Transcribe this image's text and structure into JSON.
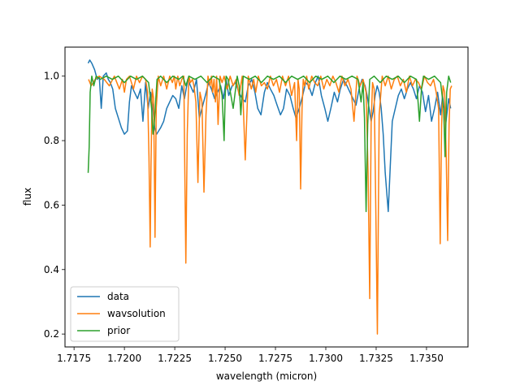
{
  "chart_data": {
    "type": "line",
    "title": "",
    "xlabel": "wavelength (micron)",
    "ylabel": "flux",
    "xlim": [
      1.71705,
      1.73706
    ],
    "ylim": [
      0.16,
      1.09
    ],
    "x_ticks": [
      1.7175,
      1.72,
      1.7225,
      1.725,
      1.7275,
      1.73,
      1.7325,
      1.735
    ],
    "x_tick_labels": [
      "1.7175",
      "1.7200",
      "1.7225",
      "1.7250",
      "1.7275",
      "1.7300",
      "1.7325",
      "1.7350"
    ],
    "y_ticks": [
      0.2,
      0.4,
      0.6,
      0.8,
      1.0
    ],
    "y_tick_labels": [
      "0.2",
      "0.4",
      "0.6",
      "0.8",
      "1.0"
    ],
    "grid": false,
    "legend": "lower-left",
    "series": [
      {
        "name": "data",
        "color": "#1f77b4",
        "x": [
          1.7182,
          1.71828,
          1.71838,
          1.71852,
          1.71865,
          1.71875,
          1.71885,
          1.71895,
          1.7191,
          1.7192,
          1.7193,
          1.71942,
          1.71955,
          1.7197,
          1.71985,
          1.72,
          1.72015,
          1.72025,
          1.72035,
          1.7205,
          1.72065,
          1.7208,
          1.72092,
          1.72105,
          1.72118,
          1.7213,
          1.7214,
          1.7215,
          1.7216,
          1.7217,
          1.7218,
          1.72195,
          1.7221,
          1.72225,
          1.7224,
          1.72255,
          1.7227,
          1.72285,
          1.72298,
          1.72315,
          1.72328,
          1.72342,
          1.72358,
          1.72372,
          1.72385,
          1.72402,
          1.72418,
          1.72432,
          1.72448,
          1.72462,
          1.72478,
          1.72492,
          1.72505,
          1.72518,
          1.72535,
          1.72552,
          1.72568,
          1.72585,
          1.726,
          1.72615,
          1.72632,
          1.72648,
          1.72662,
          1.72678,
          1.72695,
          1.7271,
          1.72725,
          1.72742,
          1.72758,
          1.72775,
          1.7279,
          1.72805,
          1.72822,
          1.72838,
          1.72852,
          1.72868,
          1.72885,
          1.729,
          1.72915,
          1.72932,
          1.72948,
          1.72962,
          1.72978,
          1.72995,
          1.7301,
          1.73025,
          1.73042,
          1.73058,
          1.73072,
          1.73088,
          1.73105,
          1.7312,
          1.73135,
          1.7315,
          1.73165,
          1.7318,
          1.73195,
          1.73205,
          1.73215,
          1.73225,
          1.73235,
          1.73245,
          1.73255,
          1.73265,
          1.73275,
          1.73285,
          1.73295,
          1.7331,
          1.7332,
          1.7333,
          1.73345,
          1.7336,
          1.73375,
          1.7339,
          1.73405,
          1.7342,
          1.73435,
          1.7345,
          1.73465,
          1.7348,
          1.73495,
          1.7351,
          1.73525,
          1.7354,
          1.73555,
          1.7357,
          1.7358,
          1.73595,
          1.7361,
          1.7362
        ],
        "y": [
          1.04,
          1.05,
          1.04,
          1.02,
          0.99,
          1.0,
          0.9,
          1.0,
          1.01,
          0.99,
          0.98,
          0.96,
          0.9,
          0.87,
          0.84,
          0.82,
          0.83,
          0.92,
          0.97,
          0.95,
          0.93,
          0.96,
          0.86,
          0.98,
          0.9,
          0.95,
          0.91,
          0.84,
          0.82,
          0.83,
          0.84,
          0.86,
          0.9,
          0.92,
          0.94,
          0.93,
          0.9,
          0.97,
          0.93,
          0.99,
          0.97,
          0.95,
          0.99,
          0.87,
          0.9,
          0.94,
          0.98,
          0.96,
          0.93,
          0.95,
          0.97,
          0.93,
          0.99,
          0.94,
          0.97,
          0.98,
          0.95,
          0.93,
          0.92,
          0.97,
          0.99,
          0.95,
          0.9,
          0.88,
          0.95,
          0.98,
          0.96,
          0.94,
          0.91,
          0.88,
          0.9,
          0.96,
          0.94,
          0.9,
          0.87,
          0.9,
          0.94,
          0.98,
          0.97,
          0.94,
          0.98,
          1.0,
          0.94,
          0.9,
          0.86,
          0.9,
          0.95,
          0.92,
          0.96,
          0.99,
          0.97,
          0.95,
          0.93,
          0.91,
          0.96,
          0.99,
          0.97,
          0.94,
          0.9,
          0.86,
          0.89,
          0.94,
          0.97,
          0.95,
          0.9,
          0.82,
          0.7,
          0.58,
          0.72,
          0.86,
          0.9,
          0.94,
          0.96,
          0.93,
          0.96,
          0.98,
          0.96,
          0.93,
          0.97,
          0.95,
          0.89,
          0.94,
          0.86,
          0.9,
          0.95,
          0.88,
          0.94,
          0.85,
          0.93,
          0.9
        ]
      },
      {
        "name": "wavsolution",
        "color": "#ff7f0e",
        "x": [
          1.71822,
          1.71835,
          1.71855,
          1.71875,
          1.719,
          1.71925,
          1.7195,
          1.71975,
          1.7199,
          1.72,
          1.7201,
          1.72025,
          1.72045,
          1.7206,
          1.72075,
          1.7209,
          1.72105,
          1.72115,
          1.72122,
          1.72128,
          1.72132,
          1.72138,
          1.72145,
          1.72152,
          1.72158,
          1.72168,
          1.7218,
          1.72195,
          1.7221,
          1.72225,
          1.72238,
          1.72248,
          1.72255,
          1.72265,
          1.72275,
          1.72285,
          1.72295,
          1.723,
          1.72305,
          1.72312,
          1.7232,
          1.72328,
          1.72338,
          1.72345,
          1.72355,
          1.72365,
          1.72375,
          1.72385,
          1.72395,
          1.72405,
          1.72415,
          1.72425,
          1.72432,
          1.72438,
          1.72445,
          1.72452,
          1.72458,
          1.72465,
          1.72475,
          1.72485,
          1.72495,
          1.7251,
          1.72525,
          1.7254,
          1.72555,
          1.7257,
          1.72585,
          1.726,
          1.72615,
          1.7263,
          1.72642,
          1.72652,
          1.72665,
          1.7268,
          1.72695,
          1.7271,
          1.72725,
          1.7274,
          1.72755,
          1.7277,
          1.72785,
          1.728,
          1.72815,
          1.7283,
          1.72845,
          1.72855,
          1.72862,
          1.72868,
          1.72875,
          1.72882,
          1.72888,
          1.72895,
          1.72905,
          1.72915,
          1.7293,
          1.72945,
          1.7296,
          1.72975,
          1.7299,
          1.73005,
          1.7302,
          1.73035,
          1.7305,
          1.73065,
          1.7308,
          1.73095,
          1.7311,
          1.73125,
          1.7314,
          1.73155,
          1.7317,
          1.73185,
          1.732,
          1.7321,
          1.73218,
          1.73225,
          1.73232,
          1.7324,
          1.73248,
          1.73256,
          1.73265,
          1.7328,
          1.73295,
          1.7331,
          1.73325,
          1.7334,
          1.73355,
          1.7337,
          1.73385,
          1.734,
          1.73415,
          1.7343,
          1.73445,
          1.7346,
          1.73475,
          1.7349,
          1.73505,
          1.7352,
          1.73535,
          1.73548,
          1.7356,
          1.73568,
          1.73575,
          1.73582,
          1.7359,
          1.73598,
          1.73605,
          1.73612,
          1.73618,
          1.73625
        ],
        "y": [
          0.99,
          0.97,
          0.99,
          1.0,
          0.99,
          0.97,
          1.0,
          0.96,
          0.99,
          0.95,
          0.99,
          1.0,
          0.96,
          1.0,
          0.98,
          1.0,
          0.99,
          0.95,
          0.75,
          0.47,
          0.72,
          0.96,
          0.93,
          0.5,
          0.9,
          1.0,
          0.97,
          1.0,
          0.96,
          1.0,
          0.98,
          1.0,
          0.96,
          1.0,
          0.97,
          0.99,
          1.0,
          0.7,
          0.42,
          0.82,
          1.0,
          0.98,
          0.99,
          0.97,
          0.92,
          0.67,
          0.95,
          0.92,
          0.64,
          0.88,
          1.0,
          0.97,
          1.0,
          0.95,
          0.99,
          0.92,
          1.0,
          0.85,
          1.0,
          0.98,
          1.0,
          0.96,
          1.0,
          0.97,
          0.99,
          0.94,
          1.0,
          0.74,
          1.0,
          0.96,
          0.99,
          0.95,
          1.0,
          0.97,
          0.98,
          0.96,
          1.0,
          0.97,
          0.99,
          0.95,
          1.0,
          0.97,
          1.0,
          0.94,
          0.98,
          0.8,
          0.99,
          0.96,
          0.65,
          0.9,
          0.99,
          0.97,
          1.0,
          0.96,
          1.0,
          0.98,
          0.97,
          1.0,
          0.96,
          0.99,
          0.97,
          1.0,
          0.98,
          0.95,
          1.0,
          0.97,
          0.99,
          0.96,
          0.86,
          1.0,
          0.97,
          0.99,
          0.95,
          0.7,
          0.31,
          0.85,
          0.98,
          0.96,
          0.6,
          0.2,
          0.88,
          1.0,
          0.97,
          1.0,
          0.96,
          0.99,
          1.0,
          0.97,
          0.99,
          0.95,
          1.0,
          0.97,
          0.99,
          0.98,
          0.96,
          1.0,
          0.98,
          0.97,
          0.99,
          0.95,
          0.9,
          0.48,
          0.85,
          0.97,
          0.95,
          0.75,
          0.49,
          0.85,
          0.96,
          0.97
        ]
      },
      {
        "name": "prior",
        "color": "#2ca02c",
        "x": [
          1.7182,
          1.71825,
          1.7183,
          1.71838,
          1.71848,
          1.7186,
          1.7188,
          1.7191,
          1.7194,
          1.7197,
          1.72,
          1.7203,
          1.7206,
          1.7209,
          1.7212,
          1.72135,
          1.72142,
          1.72148,
          1.72155,
          1.72162,
          1.7218,
          1.7221,
          1.7224,
          1.7227,
          1.7229,
          1.72305,
          1.7232,
          1.7235,
          1.7238,
          1.7241,
          1.7244,
          1.7247,
          1.72485,
          1.72495,
          1.725,
          1.72505,
          1.72515,
          1.7254,
          1.7256,
          1.7257,
          1.72578,
          1.7259,
          1.7262,
          1.7265,
          1.7268,
          1.7271,
          1.7274,
          1.7277,
          1.728,
          1.7283,
          1.7286,
          1.7289,
          1.7292,
          1.7295,
          1.7298,
          1.7301,
          1.7304,
          1.7307,
          1.731,
          1.7313,
          1.7316,
          1.73175,
          1.73185,
          1.73192,
          1.732,
          1.73208,
          1.73218,
          1.7324,
          1.7327,
          1.733,
          1.7333,
          1.7336,
          1.7339,
          1.7342,
          1.7345,
          1.73465,
          1.73475,
          1.73485,
          1.7351,
          1.7354,
          1.7357,
          1.73585,
          1.73592,
          1.736,
          1.7361,
          1.7362
        ],
        "y": [
          0.7,
          0.78,
          0.95,
          1.0,
          0.97,
          1.0,
          0.99,
          1.0,
          0.99,
          1.0,
          0.98,
          1.0,
          0.99,
          1.0,
          0.98,
          0.9,
          0.82,
          0.85,
          0.92,
          0.99,
          1.0,
          0.98,
          1.0,
          0.99,
          1.0,
          0.97,
          1.0,
          0.99,
          1.0,
          0.98,
          1.0,
          0.99,
          0.94,
          0.8,
          0.93,
          1.0,
          0.99,
          0.9,
          1.0,
          0.97,
          0.88,
          1.0,
          0.99,
          1.0,
          0.98,
          1.0,
          0.99,
          1.0,
          0.98,
          1.0,
          0.99,
          1.0,
          0.98,
          1.0,
          0.99,
          1.0,
          0.98,
          1.0,
          0.99,
          1.0,
          0.99,
          0.92,
          0.98,
          0.87,
          0.58,
          0.85,
          0.99,
          1.0,
          0.98,
          1.0,
          0.99,
          1.0,
          0.98,
          1.0,
          0.99,
          0.86,
          0.96,
          1.0,
          0.99,
          1.0,
          0.98,
          0.9,
          0.75,
          0.95,
          1.0,
          0.98
        ]
      }
    ]
  }
}
